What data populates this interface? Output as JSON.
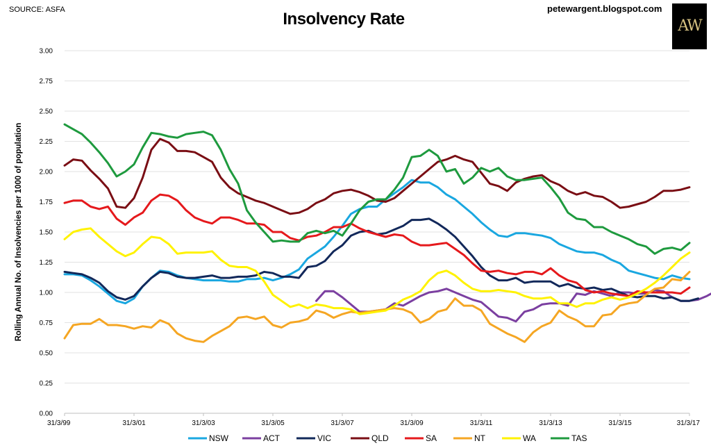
{
  "header": {
    "source": "SOURCE: ASFA",
    "title": "Insolvency Rate",
    "site": "petewargent.blogspot.com",
    "logo_text": "AW"
  },
  "chart_data": {
    "type": "line",
    "title": "Insolvency Rate",
    "ylabel": "Rolling Annual No. of Insolvencies per 1000 of population",
    "xlabel": "",
    "ylim": [
      0,
      3
    ],
    "ytick_labels": [
      "0.00",
      "0.25",
      "0.50",
      "0.75",
      "1.00",
      "1.25",
      "1.50",
      "1.75",
      "2.00",
      "2.25",
      "2.50",
      "2.75",
      "3.00"
    ],
    "x_tick_labels": [
      "31/3/99",
      "31/3/01",
      "31/3/03",
      "31/3/05",
      "31/3/07",
      "31/3/09",
      "31/3/11",
      "31/3/13",
      "31/3/15",
      "31/3/17"
    ],
    "x_tick_quarters": [
      0,
      8,
      16,
      24,
      32,
      40,
      48,
      56,
      64,
      72
    ],
    "grid": true,
    "legend_position": "bottom",
    "series": [
      {
        "name": "NSW",
        "color": "#1AA7E0",
        "start": 0,
        "values": [
          1.15,
          1.15,
          1.14,
          1.1,
          1.05,
          0.99,
          0.93,
          0.91,
          0.95,
          1.05,
          1.12,
          1.18,
          1.17,
          1.14,
          1.12,
          1.11,
          1.1,
          1.1,
          1.1,
          1.09,
          1.09,
          1.11,
          1.11,
          1.12,
          1.1,
          1.12,
          1.15,
          1.19,
          1.28,
          1.33,
          1.38,
          1.46,
          1.55,
          1.65,
          1.69,
          1.71,
          1.71,
          1.77,
          1.82,
          1.87,
          1.93,
          1.91,
          1.91,
          1.87,
          1.81,
          1.77,
          1.71,
          1.65,
          1.58,
          1.52,
          1.47,
          1.46,
          1.49,
          1.49,
          1.48,
          1.47,
          1.45,
          1.4,
          1.37,
          1.34,
          1.33,
          1.33,
          1.31,
          1.27,
          1.24,
          1.18,
          1.16,
          1.14,
          1.12,
          1.11,
          1.14,
          1.12,
          1.11
        ]
      },
      {
        "name": "ACT",
        "color": "#7B3FA0",
        "start": 29,
        "values": [
          0.93,
          1.01,
          1.01,
          0.96,
          0.9,
          0.84,
          0.84,
          0.85,
          0.86,
          0.91,
          0.89,
          0.93,
          0.97,
          1.0,
          1.01,
          1.03,
          1.0,
          0.97,
          0.94,
          0.92,
          0.86,
          0.8,
          0.79,
          0.76,
          0.84,
          0.86,
          0.9,
          0.91,
          0.91,
          0.89,
          0.99,
          0.98,
          1.01,
          0.99,
          0.97,
          1.0,
          1.0,
          0.99,
          0.99,
          1.02,
          1.01,
          0.96,
          0.93,
          0.93,
          0.94,
          0.97,
          1.01
        ]
      },
      {
        "name": "VIC",
        "color": "#12285A",
        "start": 0,
        "values": [
          1.17,
          1.16,
          1.15,
          1.12,
          1.08,
          1.01,
          0.96,
          0.94,
          0.97,
          1.05,
          1.12,
          1.17,
          1.16,
          1.13,
          1.12,
          1.12,
          1.13,
          1.14,
          1.12,
          1.12,
          1.13,
          1.13,
          1.14,
          1.17,
          1.16,
          1.13,
          1.13,
          1.12,
          1.21,
          1.22,
          1.26,
          1.34,
          1.39,
          1.47,
          1.5,
          1.51,
          1.48,
          1.49,
          1.52,
          1.55,
          1.6,
          1.6,
          1.61,
          1.57,
          1.52,
          1.46,
          1.38,
          1.3,
          1.21,
          1.14,
          1.1,
          1.1,
          1.12,
          1.08,
          1.09,
          1.09,
          1.09,
          1.05,
          1.07,
          1.04,
          1.03,
          1.04,
          1.02,
          1.03,
          1.0,
          0.97,
          0.96,
          0.97,
          0.97,
          0.95,
          0.96,
          0.93,
          0.93,
          0.95
        ]
      },
      {
        "name": "QLD",
        "color": "#7A0E14",
        "start": 0,
        "values": [
          2.05,
          2.1,
          2.09,
          2.01,
          1.94,
          1.86,
          1.71,
          1.7,
          1.78,
          1.95,
          2.18,
          2.27,
          2.24,
          2.17,
          2.17,
          2.16,
          2.12,
          2.08,
          1.95,
          1.87,
          1.82,
          1.79,
          1.76,
          1.74,
          1.71,
          1.68,
          1.65,
          1.66,
          1.69,
          1.74,
          1.77,
          1.82,
          1.84,
          1.85,
          1.83,
          1.8,
          1.76,
          1.75,
          1.78,
          1.84,
          1.9,
          1.96,
          2.02,
          2.08,
          2.1,
          2.13,
          2.1,
          2.08,
          1.99,
          1.9,
          1.88,
          1.84,
          1.91,
          1.94,
          1.96,
          1.97,
          1.92,
          1.89,
          1.84,
          1.81,
          1.83,
          1.8,
          1.79,
          1.75,
          1.7,
          1.71,
          1.73,
          1.75,
          1.79,
          1.84,
          1.84,
          1.85,
          1.87
        ]
      },
      {
        "name": "SA",
        "color": "#E5191C",
        "start": 0,
        "values": [
          1.74,
          1.76,
          1.76,
          1.71,
          1.69,
          1.71,
          1.61,
          1.56,
          1.62,
          1.66,
          1.76,
          1.81,
          1.8,
          1.76,
          1.68,
          1.62,
          1.59,
          1.57,
          1.62,
          1.62,
          1.6,
          1.57,
          1.57,
          1.56,
          1.5,
          1.5,
          1.45,
          1.43,
          1.46,
          1.47,
          1.5,
          1.54,
          1.54,
          1.57,
          1.53,
          1.5,
          1.48,
          1.46,
          1.48,
          1.47,
          1.42,
          1.39,
          1.39,
          1.4,
          1.41,
          1.36,
          1.31,
          1.24,
          1.18,
          1.17,
          1.18,
          1.16,
          1.15,
          1.17,
          1.17,
          1.15,
          1.2,
          1.14,
          1.1,
          1.08,
          1.02,
          1.0,
          1.01,
          0.99,
          0.98,
          0.97,
          1.01,
          1.0,
          1.0,
          1.0,
          1.0,
          0.99,
          1.04
        ]
      },
      {
        "name": "NT",
        "color": "#F5A623",
        "start": 0,
        "values": [
          0.62,
          0.73,
          0.74,
          0.74,
          0.78,
          0.73,
          0.73,
          0.72,
          0.7,
          0.72,
          0.71,
          0.77,
          0.74,
          0.66,
          0.62,
          0.6,
          0.59,
          0.64,
          0.68,
          0.72,
          0.79,
          0.8,
          0.78,
          0.8,
          0.73,
          0.71,
          0.75,
          0.76,
          0.78,
          0.85,
          0.83,
          0.79,
          0.82,
          0.84,
          0.83,
          0.84,
          0.85,
          0.86,
          0.87,
          0.86,
          0.83,
          0.75,
          0.78,
          0.84,
          0.86,
          0.95,
          0.89,
          0.89,
          0.85,
          0.74,
          0.7,
          0.66,
          0.63,
          0.59,
          0.67,
          0.72,
          0.75,
          0.85,
          0.8,
          0.77,
          0.72,
          0.72,
          0.81,
          0.82,
          0.89,
          0.91,
          0.92,
          0.98,
          1.03,
          1.04,
          1.11,
          1.1,
          1.17
        ]
      },
      {
        "name": "WA",
        "color": "#FFF200",
        "start": 0,
        "values": [
          1.44,
          1.5,
          1.52,
          1.53,
          1.46,
          1.4,
          1.34,
          1.3,
          1.33,
          1.4,
          1.46,
          1.45,
          1.4,
          1.32,
          1.33,
          1.33,
          1.33,
          1.34,
          1.27,
          1.22,
          1.21,
          1.21,
          1.18,
          1.09,
          0.98,
          0.93,
          0.88,
          0.9,
          0.87,
          0.9,
          0.89,
          0.87,
          0.87,
          0.86,
          0.82,
          0.83,
          0.84,
          0.85,
          0.89,
          0.94,
          0.97,
          1.01,
          1.1,
          1.16,
          1.18,
          1.14,
          1.08,
          1.03,
          1.01,
          1.01,
          1.02,
          1.01,
          1.0,
          0.97,
          0.95,
          0.95,
          0.96,
          0.91,
          0.91,
          0.88,
          0.91,
          0.91,
          0.94,
          0.96,
          0.94,
          0.96,
          0.99,
          1.03,
          1.08,
          1.14,
          1.21,
          1.28,
          1.33
        ]
      },
      {
        "name": "TAS",
        "color": "#1E9A3E",
        "start": 0,
        "values": [
          2.39,
          2.35,
          2.31,
          2.24,
          2.16,
          2.07,
          1.96,
          2.0,
          2.06,
          2.2,
          2.32,
          2.31,
          2.29,
          2.28,
          2.31,
          2.32,
          2.33,
          2.3,
          2.18,
          2.02,
          1.9,
          1.68,
          1.58,
          1.5,
          1.42,
          1.43,
          1.42,
          1.42,
          1.49,
          1.51,
          1.49,
          1.51,
          1.47,
          1.57,
          1.68,
          1.75,
          1.77,
          1.77,
          1.85,
          1.95,
          2.12,
          2.13,
          2.18,
          2.13,
          2.0,
          2.02,
          1.9,
          1.95,
          2.03,
          2.0,
          2.03,
          1.96,
          1.93,
          1.93,
          1.94,
          1.95,
          1.87,
          1.78,
          1.66,
          1.61,
          1.6,
          1.54,
          1.54,
          1.5,
          1.47,
          1.44,
          1.4,
          1.38,
          1.32,
          1.36,
          1.37,
          1.35,
          1.41
        ]
      }
    ]
  }
}
